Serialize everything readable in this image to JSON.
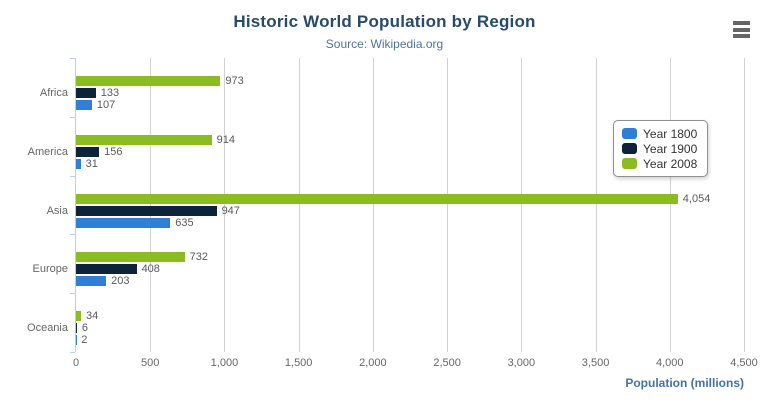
{
  "header": {
    "title": "Historic World Population by Region",
    "subtitle": "Source: Wikipedia.org"
  },
  "icons": {
    "menu": "hamburger-icon"
  },
  "chart_data": {
    "type": "bar",
    "title": "Historic World Population by Region",
    "subtitle": "Source: Wikipedia.org",
    "categories": [
      "Africa",
      "America",
      "Asia",
      "Europe",
      "Oceania"
    ],
    "series": [
      {
        "name": "Year 1800",
        "color": "#2f7ed8",
        "values": [
          107,
          31,
          635,
          203,
          2
        ]
      },
      {
        "name": "Year 1900",
        "color": "#0d233a",
        "values": [
          133,
          156,
          947,
          408,
          6
        ]
      },
      {
        "name": "Year 2008",
        "color": "#8bbc21",
        "values": [
          973,
          914,
          4054,
          732,
          34
        ]
      }
    ],
    "bar_order_top_to_bottom": [
      "Year 2008",
      "Year 1900",
      "Year 1800"
    ],
    "data_labels": {
      "Africa": {
        "Year 1800": "107",
        "Year 1900": "133",
        "Year 2008": "973"
      },
      "America": {
        "Year 1800": "31",
        "Year 1900": "156",
        "Year 2008": "914"
      },
      "Asia": {
        "Year 1800": "635",
        "Year 1900": "947",
        "Year 2008": "4,054"
      },
      "Europe": {
        "Year 1800": "203",
        "Year 1900": "408",
        "Year 2008": "732"
      },
      "Oceania": {
        "Year 1800": "2",
        "Year 1900": "6",
        "Year 2008": "34"
      }
    },
    "xlabel": "Population (millions)",
    "ylabel": "",
    "xlim": [
      0,
      4500
    ],
    "xticks": [
      0,
      500,
      1000,
      1500,
      2000,
      2500,
      3000,
      3500,
      4000,
      4500
    ],
    "xtick_labels": [
      "0",
      "500",
      "1,000",
      "1,500",
      "2,000",
      "2,500",
      "3,000",
      "3,500",
      "4,000",
      "4,500"
    ],
    "grid": true,
    "legend_position": "middle-right"
  },
  "colors": {
    "title": "#274b6d",
    "subtitle": "#4d759e",
    "axis_line": "#c0d0e0",
    "gridline": "#d2d2d2",
    "tick_label": "#666666",
    "data_label": "#5a5a5a",
    "axis_title": "#4572a7",
    "legend_border": "#909090",
    "legend_text": "#333333",
    "menu_icon": "#666666"
  }
}
